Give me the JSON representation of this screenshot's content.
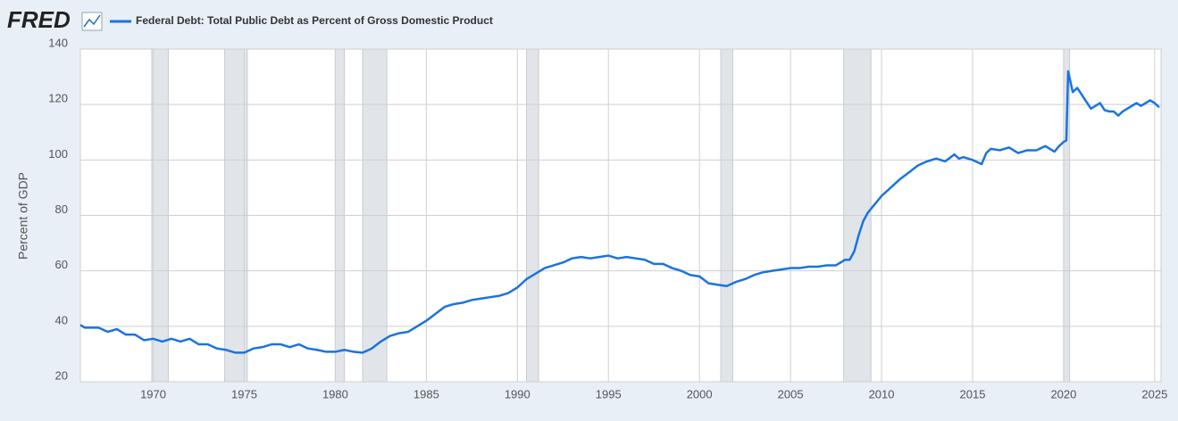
{
  "chart_data": {
    "type": "line",
    "logo": "FRED",
    "title": "Federal Debt: Total Public Debt as Percent of Gross Domestic Product",
    "y_label": "Percent of GDP",
    "x": [
      1966.0,
      1966.25,
      1967,
      1967.5,
      1968,
      1968.5,
      1969,
      1969.5,
      1970,
      1970.5,
      1971,
      1971.5,
      1972,
      1972.5,
      1973,
      1973.5,
      1974,
      1974.5,
      1975,
      1975.5,
      1976,
      1976.5,
      1977,
      1977.5,
      1978,
      1978.5,
      1979,
      1979.5,
      1980,
      1980.5,
      1981,
      1981.5,
      1982,
      1982.5,
      1983,
      1983.5,
      1984,
      1984.5,
      1985,
      1985.5,
      1986,
      1986.5,
      1987,
      1987.5,
      1988,
      1988.5,
      1989,
      1989.5,
      1990,
      1990.5,
      1991,
      1991.5,
      1992,
      1992.5,
      1993,
      1993.5,
      1994,
      1994.5,
      1995,
      1995.5,
      1996,
      1996.5,
      1997,
      1997.5,
      1998,
      1998.5,
      1999,
      1999.5,
      2000,
      2000.5,
      2001,
      2001.5,
      2002,
      2002.5,
      2003,
      2003.5,
      2004,
      2004.5,
      2005,
      2005.5,
      2006,
      2006.5,
      2007,
      2007.5,
      2008,
      2008.25,
      2008.5,
      2008.75,
      2009,
      2009.25,
      2009.5,
      2010,
      2010.5,
      2011,
      2011.5,
      2012,
      2012.5,
      2013,
      2013.5,
      2014,
      2014.25,
      2014.5,
      2015,
      2015.5,
      2015.75,
      2016,
      2016.5,
      2017,
      2017.5,
      2018,
      2018.5,
      2019,
      2019.5,
      2019.75,
      2020,
      2020.15,
      2020.25,
      2020.5,
      2020.75,
      2021,
      2021.5,
      2022,
      2022.25,
      2022.5,
      2022.75,
      2023,
      2023.25,
      2023.5,
      2024,
      2024.25,
      2024.75,
      2025,
      2025.25
    ],
    "series": [
      {
        "name": "Federal Debt: Total Public Debt as Percent of Gross Domestic Product",
        "color": "#1a73e0",
        "values": [
          40.5,
          39.5,
          39.5,
          38,
          39,
          37,
          37,
          35,
          35.5,
          34.5,
          35.5,
          34.5,
          35.5,
          33.5,
          33.5,
          32,
          31.5,
          30.5,
          30.5,
          32,
          32.5,
          33.5,
          33.5,
          32.5,
          33.5,
          32,
          31.5,
          30.8,
          30.8,
          31.5,
          30.8,
          30.5,
          32,
          34.5,
          36.5,
          37.5,
          38,
          40,
          42,
          44.5,
          47,
          48,
          48.5,
          49.5,
          50,
          50.5,
          51,
          52,
          54,
          57,
          59,
          61,
          62,
          63,
          64.5,
          65,
          64.5,
          65,
          65.5,
          64.5,
          65,
          64.5,
          64,
          62.5,
          62.5,
          61,
          60,
          58.5,
          58,
          55.5,
          55,
          54.5,
          56,
          57,
          58.5,
          59.5,
          60,
          60.5,
          61,
          61,
          61.5,
          61.5,
          62,
          62,
          64,
          64,
          67,
          73,
          78,
          81,
          83,
          87,
          90,
          93,
          95.5,
          98,
          99.5,
          100.5,
          99.5,
          102,
          100.5,
          101,
          100,
          98.5,
          102.5,
          104,
          103.5,
          104.5,
          102.5,
          103.5,
          103.5,
          105,
          103,
          105,
          106.5,
          107,
          132,
          124.5,
          126,
          123.5,
          118.5,
          120.5,
          118,
          117.5,
          117.5,
          116,
          117.5,
          118.5,
          120.5,
          119.5,
          121.5,
          120.5,
          119
        ]
      }
    ],
    "recessions": [
      [
        1969.92,
        1970.83
      ],
      [
        1973.92,
        1975.17
      ],
      [
        1980.0,
        1980.5
      ],
      [
        1981.5,
        1982.83
      ],
      [
        1990.5,
        1991.17
      ],
      [
        2001.17,
        2001.83
      ],
      [
        2007.92,
        2009.42
      ],
      [
        2020.0,
        2020.33
      ]
    ],
    "xlim": [
      1966,
      2025.35
    ],
    "ylim": [
      20,
      140
    ],
    "xticks": [
      1970,
      1975,
      1980,
      1985,
      1990,
      1995,
      2000,
      2005,
      2010,
      2015,
      2020,
      2025
    ],
    "yticks": [
      20,
      40,
      60,
      80,
      100,
      120,
      140
    ],
    "grid": true
  }
}
